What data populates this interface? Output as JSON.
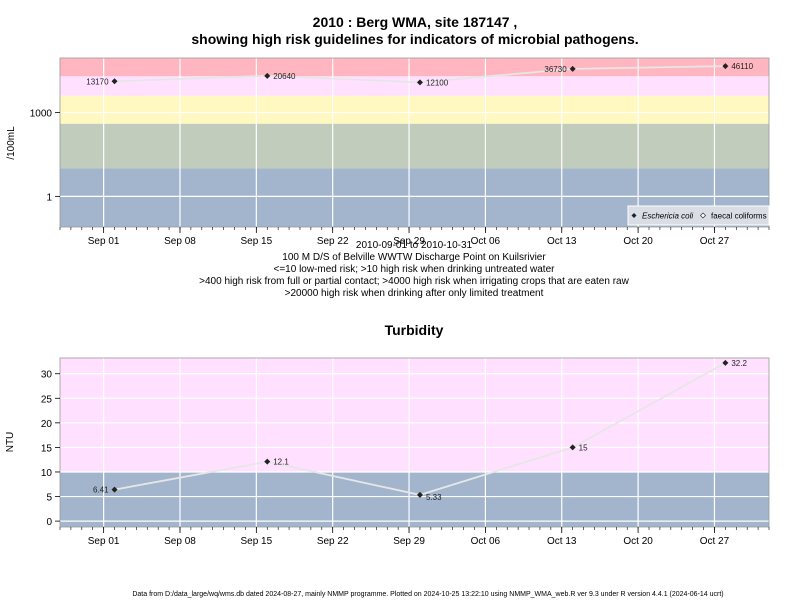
{
  "colors": {
    "very_high": "#ffb6c1",
    "high": "#ffe1ff",
    "med": "#fff8c0",
    "low": "#c1ccbd",
    "very_low": "#a2b5cd",
    "grid": "#ffffff",
    "line": "#e6e6e6",
    "point": "#222222"
  },
  "chart_data": [
    {
      "type": "line",
      "title": "2010 : Berg WMA, site 187147 ,",
      "subtitle": "showing high risk guidelines for indicators of microbial pathogens.",
      "ylabel": "/100mL",
      "yscale": "log",
      "ylim": [
        0.08,
        90000
      ],
      "xlim": [
        "2010-08-28",
        "2010-11-01"
      ],
      "x_ticks": [
        {
          "date": "2010-09-01",
          "label": "Sep 01"
        },
        {
          "date": "2010-09-08",
          "label": "Sep 08"
        },
        {
          "date": "2010-09-15",
          "label": "Sep 15"
        },
        {
          "date": "2010-09-22",
          "label": "Sep 22"
        },
        {
          "date": "2010-09-29",
          "label": "Sep 29"
        },
        {
          "date": "2010-10-06",
          "label": "Oct 06"
        },
        {
          "date": "2010-10-13",
          "label": "Oct 13"
        },
        {
          "date": "2010-10-20",
          "label": "Oct 20"
        },
        {
          "date": "2010-10-27",
          "label": "Oct 27"
        }
      ],
      "y_ticks": [
        {
          "value": 1,
          "label": "1"
        },
        {
          "value": 1000,
          "label": "1000"
        }
      ],
      "bands": [
        {
          "from": 0.08,
          "to": 10,
          "color": "#a2b5cd"
        },
        {
          "from": 10,
          "to": 400,
          "color": "#c1ccbd"
        },
        {
          "from": 400,
          "to": 4000,
          "color": "#fff8c0"
        },
        {
          "from": 4000,
          "to": 20000,
          "color": "#ffe1ff"
        },
        {
          "from": 20000,
          "to": 90000,
          "color": "#ffb6c1"
        }
      ],
      "series": [
        {
          "name": "Eschericia coli",
          "marker": "filled-diamond",
          "points": [
            {
              "x": "2010-09-02",
              "y": 13170,
              "label": "13170"
            },
            {
              "x": "2010-09-16",
              "y": 20640,
              "label": "20640"
            },
            {
              "x": "2010-09-30",
              "y": 12100,
              "label": "12100"
            },
            {
              "x": "2010-10-14",
              "y": 36730,
              "label": "36730"
            },
            {
              "x": "2010-10-28",
              "y": 46110,
              "label": "46110"
            }
          ]
        }
      ],
      "legend": {
        "placement": "bottom-right",
        "entries": [
          "Eschericia coli",
          "faecal coliforms"
        ]
      },
      "caption": [
        "2010-09-01 to 2010-10-31",
        "100 M D/S of Belville WWTW Discharge Point on Kuilsrivier",
        "<=10 low-med risk; >10 high risk when drinking untreated water",
        ">400 high risk from full or partial contact; >4000 high risk when irrigating crops that are eaten raw",
        ">20000 high risk when drinking after only limited treatment"
      ]
    },
    {
      "type": "line",
      "title": "Turbidity",
      "ylabel": "NTU",
      "ylim": [
        -1.2,
        33.2
      ],
      "xlim": [
        "2010-08-28",
        "2010-11-01"
      ],
      "x_ticks": [
        {
          "date": "2010-09-01",
          "label": "Sep 01"
        },
        {
          "date": "2010-09-08",
          "label": "Sep 08"
        },
        {
          "date": "2010-09-15",
          "label": "Sep 15"
        },
        {
          "date": "2010-09-22",
          "label": "Sep 22"
        },
        {
          "date": "2010-09-29",
          "label": "Sep 29"
        },
        {
          "date": "2010-10-06",
          "label": "Oct 06"
        },
        {
          "date": "2010-10-13",
          "label": "Oct 13"
        },
        {
          "date": "2010-10-20",
          "label": "Oct 20"
        },
        {
          "date": "2010-10-27",
          "label": "Oct 27"
        }
      ],
      "y_ticks": [
        {
          "value": 0,
          "label": "0"
        },
        {
          "value": 5,
          "label": "5"
        },
        {
          "value": 10,
          "label": "10"
        },
        {
          "value": 15,
          "label": "15"
        },
        {
          "value": 20,
          "label": "20"
        },
        {
          "value": 25,
          "label": "25"
        },
        {
          "value": 30,
          "label": "30"
        }
      ],
      "bands": [
        {
          "from": -1.2,
          "to": 10,
          "color": "#a2b5cd"
        },
        {
          "from": 10,
          "to": 33.2,
          "color": "#ffe1ff"
        }
      ],
      "series": [
        {
          "marker": "filled-diamond",
          "points": [
            {
              "x": "2010-09-02",
              "y": 6.41,
              "label": "6.41"
            },
            {
              "x": "2010-09-16",
              "y": 12.1,
              "label": "12.1"
            },
            {
              "x": "2010-09-30",
              "y": 5.33,
              "label": "5.33"
            },
            {
              "x": "2010-10-14",
              "y": 15,
              "label": "15"
            },
            {
              "x": "2010-10-28",
              "y": 32.2,
              "label": "32.2"
            }
          ]
        }
      ]
    }
  ],
  "footer": "Data from D:/data_large/wq/wms.db dated 2024-08-27, mainly NMMP programme. Plotted on 2024-10-25 13:22:10 using NMMP_WMA_web.R ver 9.3 under R version 4.4.1 (2024-06-14 ucrt)"
}
